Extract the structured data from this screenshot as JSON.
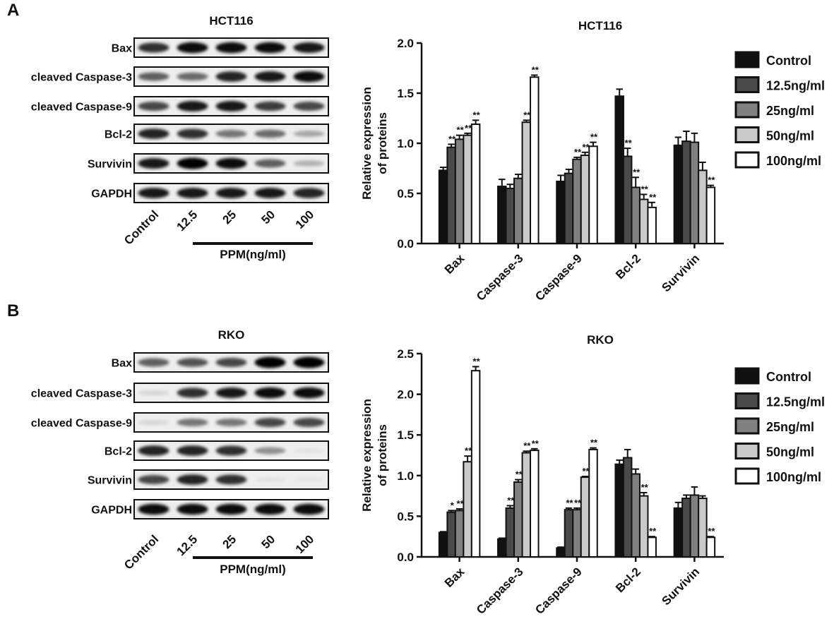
{
  "panel_labels": [
    "A",
    "B"
  ],
  "blots": [
    {
      "title": "HCT116",
      "rows": [
        "Bax",
        "cleaved Caspase-3",
        "cleaved Caspase-9",
        "Bcl-2",
        "Survivin",
        "GAPDH"
      ],
      "lanes": [
        "Control",
        "12.5",
        "25",
        "50",
        "100"
      ],
      "treatment": "PPM(ng/ml)"
    },
    {
      "title": "RKO",
      "rows": [
        "Bax",
        "cleaved Caspase-3",
        "cleaved Caspase-9",
        "Bcl-2",
        "Survivin",
        "GAPDH"
      ],
      "lanes": [
        "Control",
        "12.5",
        "25",
        "50",
        "100"
      ],
      "treatment": "PPM(ng/ml)"
    }
  ],
  "chart_data": [
    {
      "type": "bar",
      "title": "HCT116",
      "y_label": [
        "Relative expression",
        "of proteins"
      ],
      "categories": [
        "Bax",
        "Caspase-3",
        "Caspase-9",
        "Bcl-2",
        "Survivin"
      ],
      "ylim": [
        0,
        2
      ],
      "yticks": [
        {
          "value": 0,
          "label": "0.0"
        },
        {
          "value": 0.5,
          "label": "0.5"
        },
        {
          "value": 1,
          "label": "1.0"
        },
        {
          "value": 1.5,
          "label": "1.5"
        },
        {
          "value": 2,
          "label": "2.0"
        }
      ],
      "series": [
        {
          "name": "Control",
          "color": "#111111",
          "values": [
            0.73,
            0.57,
            0.62,
            1.47,
            0.98
          ],
          "errors": [
            0.03,
            0.07,
            0.06,
            0.07,
            0.08
          ],
          "significance": [
            null,
            null,
            null,
            null,
            null
          ]
        },
        {
          "name": "12.5ng/ml",
          "color": "#4a4a4a",
          "values": [
            0.96,
            0.55,
            0.7,
            0.87,
            1.02
          ],
          "errors": [
            0.03,
            0.04,
            0.04,
            0.08,
            0.1
          ],
          "significance": [
            "**",
            null,
            null,
            "**",
            null
          ]
        },
        {
          "name": "25ng/ml",
          "color": "#808080",
          "values": [
            1.04,
            0.65,
            0.84,
            0.56,
            1.01
          ],
          "errors": [
            0.04,
            0.04,
            0.02,
            0.1,
            0.09
          ],
          "significance": [
            "**",
            null,
            "**",
            "**",
            null
          ]
        },
        {
          "name": "50ng/ml",
          "color": "#cacaca",
          "values": [
            1.08,
            1.21,
            0.88,
            0.44,
            0.73
          ],
          "errors": [
            0.02,
            0.02,
            0.03,
            0.05,
            0.08
          ],
          "significance": [
            "**",
            "**",
            "**",
            "**",
            null
          ]
        },
        {
          "name": "100ng/ml",
          "color": "#ffffff",
          "values": [
            1.19,
            1.66,
            0.97,
            0.36,
            0.56
          ],
          "errors": [
            0.04,
            0.02,
            0.04,
            0.05,
            0.02
          ],
          "significance": [
            "**",
            "**",
            "**",
            "**",
            "**"
          ]
        }
      ]
    },
    {
      "type": "bar",
      "title": "RKO",
      "y_label": [
        "Relative expression",
        "of proteins"
      ],
      "categories": [
        "Bax",
        "Caspase-3",
        "Caspase-9",
        "Bcl-2",
        "Survivin"
      ],
      "ylim": [
        0,
        2.5
      ],
      "yticks": [
        {
          "value": 0,
          "label": "0.0"
        },
        {
          "value": 0.5,
          "label": "0.5"
        },
        {
          "value": 1,
          "label": "1.0"
        },
        {
          "value": 1.5,
          "label": "1.5"
        },
        {
          "value": 2,
          "label": "2.0"
        },
        {
          "value": 2.5,
          "label": "2.5"
        }
      ],
      "series": [
        {
          "name": "Control",
          "color": "#111111",
          "values": [
            0.3,
            0.22,
            0.11,
            1.14,
            0.6
          ],
          "errors": [
            0.01,
            0.01,
            0.01,
            0.05,
            0.07
          ],
          "significance": [
            null,
            null,
            null,
            null,
            null
          ]
        },
        {
          "name": "12.5ng/ml",
          "color": "#4a4a4a",
          "values": [
            0.55,
            0.6,
            0.58,
            1.22,
            0.72
          ],
          "errors": [
            0.02,
            0.03,
            0.02,
            0.1,
            0.04
          ],
          "significance": [
            "*",
            "**",
            "**",
            null,
            null
          ]
        },
        {
          "name": "25ng/ml",
          "color": "#808080",
          "values": [
            0.57,
            0.92,
            0.58,
            1.02,
            0.76
          ],
          "errors": [
            0.02,
            0.03,
            0.02,
            0.06,
            0.1
          ],
          "significance": [
            "**",
            "**",
            "**",
            null,
            null
          ]
        },
        {
          "name": "50ng/ml",
          "color": "#cacaca",
          "values": [
            1.17,
            1.28,
            0.98,
            0.75,
            0.72
          ],
          "errors": [
            0.07,
            0.02,
            0.01,
            0.04,
            0.03
          ],
          "significance": [
            "**",
            "**",
            "**",
            "**",
            null
          ]
        },
        {
          "name": "100ng/ml",
          "color": "#ffffff",
          "values": [
            2.29,
            1.31,
            1.32,
            0.24,
            0.24
          ],
          "errors": [
            0.05,
            0.02,
            0.02,
            0.01,
            0.01
          ],
          "significance": [
            "**",
            "**",
            "**",
            "**",
            "**"
          ]
        }
      ]
    }
  ]
}
